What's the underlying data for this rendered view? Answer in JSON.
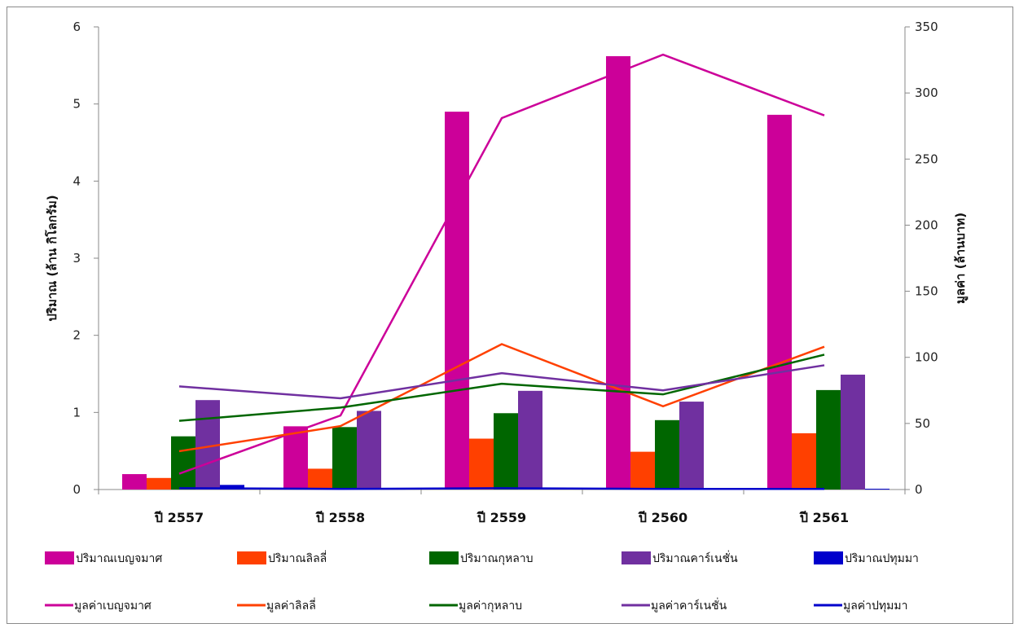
{
  "chart_data": {
    "type": "bar",
    "categories": [
      "ปี 2557",
      "ปี 2558",
      "ปี 2559",
      "ปี 2560",
      "ปี 2561"
    ],
    "ylabel": "ปริมาณ (ล้าน กิโลกรัม)",
    "ylabel_right": "มูลค่า (ล้านบาท)",
    "ylim": [
      0,
      6
    ],
    "ylim_right": [
      0,
      350
    ],
    "yticks": [
      "0",
      "1",
      "2",
      "3",
      "4",
      "5",
      "6"
    ],
    "yticks_right": [
      "0",
      "50",
      "100",
      "150",
      "200",
      "250",
      "300",
      "350"
    ],
    "grid": false,
    "legend_placement": "bottom",
    "series": [
      {
        "name": "ปริมาณเบญจมาศ",
        "kind": "bar",
        "axis": "left",
        "color": "#cc0099",
        "values": [
          0.2,
          0.82,
          4.9,
          5.62,
          4.86
        ]
      },
      {
        "name": "ปริมาณลิลลี่",
        "kind": "bar",
        "axis": "left",
        "color": "#ff4000",
        "values": [
          0.15,
          0.27,
          0.66,
          0.49,
          0.73
        ]
      },
      {
        "name": "ปริมาณกุหลาบ",
        "kind": "bar",
        "axis": "left",
        "color": "#006600",
        "values": [
          0.69,
          0.81,
          0.99,
          0.9,
          1.29
        ]
      },
      {
        "name": "ปริมาณคาร์เนชั่น",
        "kind": "bar",
        "axis": "left",
        "color": "#7030a0",
        "values": [
          1.16,
          1.02,
          1.28,
          1.14,
          1.49
        ]
      },
      {
        "name": "ปริมาณปทุมมา",
        "kind": "bar",
        "axis": "left",
        "color": "#0000cc",
        "values": [
          0.06,
          0.01,
          0.02,
          0.01,
          0.01
        ]
      },
      {
        "name": "มูลค่าเบญจมาศ",
        "kind": "line",
        "axis": "right",
        "color": "#cc0099",
        "values": [
          12,
          56,
          281,
          329,
          283
        ]
      },
      {
        "name": "มูลค่าลิลลี่",
        "kind": "line",
        "axis": "right",
        "color": "#ff4000",
        "values": [
          29,
          48,
          110,
          63,
          108
        ]
      },
      {
        "name": "มูลค่ากุหลาบ",
        "kind": "line",
        "axis": "right",
        "color": "#006600",
        "values": [
          52,
          62,
          80,
          72,
          102
        ]
      },
      {
        "name": "มูลค่าคาร์เนชั่น",
        "kind": "line",
        "axis": "right",
        "color": "#7030a0",
        "values": [
          78,
          69,
          88,
          75,
          94
        ]
      },
      {
        "name": "มูลค่าปทุมมา",
        "kind": "line",
        "axis": "right",
        "color": "#0000cc",
        "values": [
          1,
          0.5,
          1,
          0.5,
          0.5
        ]
      }
    ]
  }
}
